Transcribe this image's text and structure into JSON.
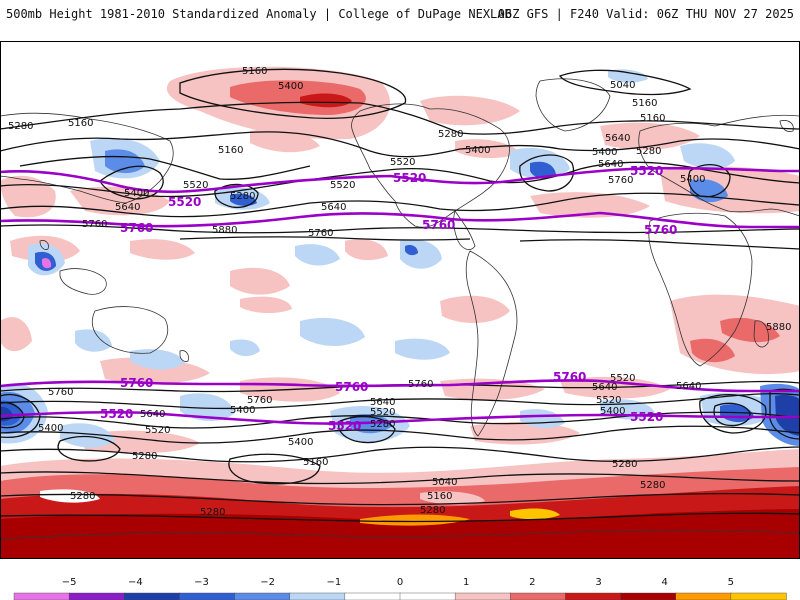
{
  "header": {
    "title_left": "500mb Height 1981-2010 Standardized Anomaly | College of DuPage NEXLAB",
    "title_right": "06Z GFS | F240 Valid: 06Z THU NOV 27 2025"
  },
  "map": {
    "height_labels_black": [
      "5160",
      "5400",
      "5040",
      "5160",
      "5280",
      "5160",
      "5160",
      "5280",
      "5400",
      "5520",
      "5640",
      "5400",
      "5520",
      "5280",
      "5640",
      "5400",
      "5640",
      "5760",
      "5880",
      "5760",
      "5520",
      "5640",
      "5400",
      "5280",
      "5160",
      "5760",
      "5880",
      "5760",
      "5640",
      "5520",
      "5400",
      "5760",
      "5760",
      "5640",
      "5520",
      "5400",
      "5640",
      "5520",
      "5280",
      "5400",
      "5520",
      "5640",
      "5280",
      "5400",
      "5160",
      "5280",
      "5040",
      "5160",
      "5280",
      "5280",
      "5280",
      "5280"
    ],
    "highlight_labels_purple": [
      "5520",
      "5520",
      "5760",
      "5760",
      "5760",
      "5760",
      "5760",
      "5760",
      "5520",
      "5520",
      "5520",
      "5520"
    ]
  },
  "colorbar": {
    "ticks": [
      "−5",
      "−4",
      "−3",
      "−2",
      "−1",
      "0",
      "1",
      "2",
      "3",
      "4",
      "5"
    ],
    "colors": [
      "#e873e8",
      "#8b1fc7",
      "#1e3fa8",
      "#2f5fd1",
      "#5b8ce8",
      "#bcd7f5",
      "#ffffff",
      "#ffffff",
      "#f7c2c2",
      "#ea6a6a",
      "#c81818",
      "#a80000",
      "#ff9a00",
      "#ffc400"
    ]
  }
}
